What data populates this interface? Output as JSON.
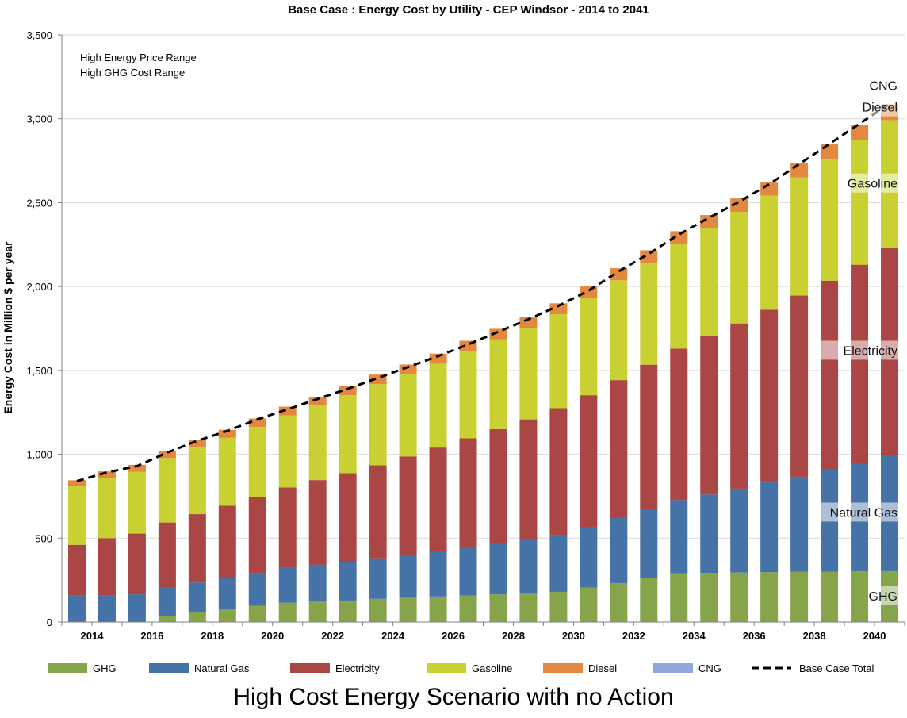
{
  "chart_data": {
    "type": "bar",
    "stacked": true,
    "title": "Base Case : Energy Cost by Utility - CEP Windsor - 2014 to 2041",
    "ylabel": "Energy Cost in Million $ per year",
    "xlabel": "",
    "ylim": [
      0,
      3500
    ],
    "yticks": [
      0,
      500,
      1000,
      1500,
      2000,
      2500,
      3000,
      3500
    ],
    "ytick_labels": [
      "0",
      "500",
      "1,000",
      "1,500",
      "2,000",
      "2,500",
      "3,000",
      "3,500"
    ],
    "categories": [
      2014,
      2015,
      2016,
      2017,
      2018,
      2019,
      2020,
      2021,
      2022,
      2023,
      2024,
      2025,
      2026,
      2027,
      2028,
      2029,
      2030,
      2031,
      2032,
      2033,
      2034,
      2035,
      2036,
      2037,
      2038,
      2039,
      2040,
      2041
    ],
    "xtick_labels": [
      "2014",
      "2016",
      "2018",
      "2020",
      "2022",
      "2024",
      "2026",
      "2028",
      "2030",
      "2032",
      "2034",
      "2036",
      "2038",
      "2040"
    ],
    "notes": [
      "High Energy Price Range",
      "High GHG Cost Range"
    ],
    "series": [
      {
        "name": "GHG",
        "color": "#86a44a",
        "values": [
          0,
          0,
          0,
          38,
          58,
          76,
          96,
          115,
          123,
          128,
          138,
          145,
          152,
          158,
          165,
          173,
          180,
          205,
          232,
          262,
          290,
          292,
          295,
          297,
          299,
          300,
          302,
          303
        ]
      },
      {
        "name": "Natural Gas",
        "color": "#4572a7",
        "values": [
          158,
          158,
          165,
          170,
          177,
          187,
          197,
          207,
          218,
          229,
          242,
          257,
          273,
          290,
          307,
          323,
          340,
          360,
          390,
          410,
          437,
          468,
          500,
          535,
          567,
          605,
          648,
          695
        ]
      },
      {
        "name": "Electricity",
        "color": "#aa4643",
        "values": [
          302,
          342,
          362,
          385,
          408,
          430,
          452,
          480,
          505,
          530,
          555,
          585,
          615,
          647,
          678,
          712,
          755,
          787,
          820,
          862,
          903,
          943,
          985,
          1030,
          1080,
          1130,
          1180,
          1235
        ]
      },
      {
        "name": "Gasoline",
        "color": "#c9d132",
        "values": [
          350,
          360,
          368,
          385,
          397,
          405,
          418,
          430,
          445,
          465,
          483,
          490,
          500,
          520,
          535,
          545,
          560,
          580,
          595,
          607,
          625,
          645,
          665,
          680,
          705,
          725,
          745,
          758
        ]
      },
      {
        "name": "Diesel",
        "color": "#e3883e",
        "values": [
          35,
          38,
          42,
          42,
          45,
          48,
          50,
          52,
          52,
          55,
          57,
          58,
          60,
          62,
          63,
          65,
          65,
          68,
          72,
          75,
          75,
          78,
          80,
          83,
          83,
          87,
          90,
          95
        ]
      },
      {
        "name": "CNG",
        "color": "#8ea9d9",
        "values": [
          0,
          0,
          0,
          0,
          0,
          0,
          0,
          0,
          0,
          0,
          0,
          0,
          0,
          0,
          0,
          0,
          0,
          0,
          0,
          0,
          0,
          0,
          0,
          0,
          0,
          0,
          0,
          0
        ]
      }
    ],
    "line": {
      "name": "Base Case Total",
      "style": "dashed",
      "color": "#000000",
      "values": [
        840,
        892,
        930,
        1010,
        1080,
        1140,
        1208,
        1268,
        1330,
        1390,
        1455,
        1520,
        1585,
        1655,
        1730,
        1805,
        1885,
        1975,
        2090,
        2195,
        2310,
        2410,
        2505,
        2610,
        2730,
        2850,
        2970,
        3090
      ]
    },
    "segment_labels": [
      {
        "text": "CNG",
        "series": "CNG"
      },
      {
        "text": "Diesel",
        "series": "Diesel"
      },
      {
        "text": "Gasoline",
        "series": "Gasoline"
      },
      {
        "text": "Electricity",
        "series": "Electricity"
      },
      {
        "text": "Natural Gas",
        "series": "Natural Gas"
      },
      {
        "text": "GHG",
        "series": "GHG"
      }
    ],
    "legend": [
      "GHG",
      "Natural Gas",
      "Electricity",
      "Gasoline",
      "Diesel",
      "CNG",
      "Base Case Total"
    ],
    "legend_position": "bottom"
  },
  "bottom_title": "High Cost Energy Scenario with no Action"
}
